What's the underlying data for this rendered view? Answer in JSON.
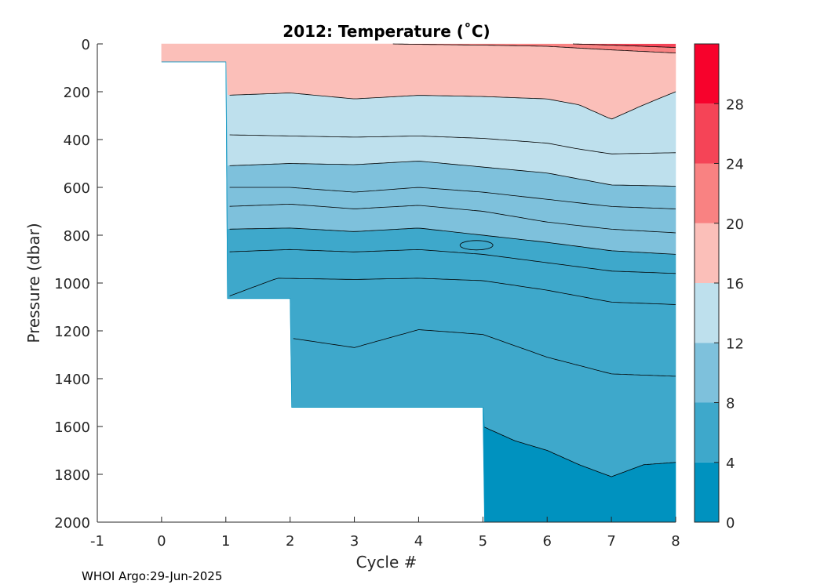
{
  "chart_data": {
    "type": "filled-contour",
    "title": "2012:  Temperature (˚C)",
    "xlabel": "Cycle #",
    "ylabel": "Pressure (dbar)",
    "xlim": [
      -1,
      8
    ],
    "ylim": [
      2000,
      0
    ],
    "y_reversed": true,
    "xticks": [
      -1,
      0,
      1,
      2,
      3,
      4,
      5,
      6,
      7,
      8
    ],
    "yticks": [
      0,
      200,
      400,
      600,
      800,
      1000,
      1200,
      1400,
      1600,
      1800,
      2000
    ],
    "colorbar": {
      "range": [
        0,
        32
      ],
      "ticks": [
        0,
        4,
        8,
        12,
        16,
        20,
        24,
        28
      ],
      "levels": [
        0,
        4,
        8,
        12,
        16,
        20,
        24,
        28,
        32
      ],
      "colors": [
        "#0092bf",
        "#3ea8cb",
        "#7ec1dc",
        "#bee0ed",
        "#fbbfb9",
        "#f98282",
        "#f54457",
        "#f7022c"
      ]
    },
    "profile_max_depth": [
      {
        "x_from": 0,
        "x_to": 1,
        "depth": 75
      },
      {
        "x_from": 1,
        "x_to": 2,
        "depth": 1065
      },
      {
        "x_from": 2,
        "x_to": 5,
        "depth": 1520
      },
      {
        "x_from": 5,
        "x_to": 8,
        "depth": 2000
      }
    ],
    "isotherms_dbar": [
      {
        "name": "28C",
        "x": [
          6.4,
          7,
          7.5,
          8
        ],
        "depth": [
          0,
          5,
          10,
          15
        ],
        "x_start": 6.4
      },
      {
        "name": "24C",
        "x": [
          3.6,
          4,
          5,
          6,
          7,
          8
        ],
        "depth": [
          0,
          2,
          5,
          10,
          25,
          38
        ],
        "x_start": 3.6
      },
      {
        "name": "16C",
        "x": [
          1,
          2,
          3,
          4,
          5,
          6,
          6.5,
          7,
          7.5,
          8
        ],
        "depth": [
          215,
          205,
          230,
          215,
          220,
          230,
          255,
          315,
          255,
          200
        ]
      },
      {
        "name": "12C_a",
        "x": [
          1,
          2,
          3,
          4,
          5,
          6,
          6.5,
          7,
          8
        ],
        "depth": [
          380,
          385,
          390,
          385,
          395,
          415,
          440,
          460,
          455
        ]
      },
      {
        "name": "12C_b",
        "x": [
          1,
          2,
          3,
          4,
          5,
          6,
          7,
          8
        ],
        "depth": [
          510,
          500,
          505,
          490,
          515,
          540,
          590,
          595
        ]
      },
      {
        "name": "8C_a",
        "x": [
          1,
          2,
          3,
          4,
          5,
          6,
          7,
          8
        ],
        "depth": [
          600,
          600,
          620,
          600,
          620,
          650,
          680,
          690
        ]
      },
      {
        "name": "8C_b",
        "x": [
          1,
          2,
          3,
          4,
          5,
          6,
          7,
          8
        ],
        "depth": [
          680,
          670,
          690,
          675,
          700,
          745,
          775,
          790
        ]
      },
      {
        "name": "8C_c",
        "x": [
          1,
          2,
          3,
          4,
          5,
          6,
          7,
          8
        ],
        "depth": [
          775,
          770,
          785,
          770,
          800,
          830,
          865,
          880
        ]
      },
      {
        "name": "4C_a",
        "x": [
          1,
          2,
          3,
          4,
          5,
          6,
          7,
          8
        ],
        "depth": [
          870,
          860,
          870,
          860,
          880,
          915,
          950,
          960
        ]
      },
      {
        "name": "4C_b",
        "x": [
          1,
          1.8,
          3,
          4,
          5,
          6,
          7,
          8
        ],
        "depth": [
          1060,
          980,
          985,
          980,
          990,
          1030,
          1080,
          1090
        ]
      },
      {
        "name": "4C_c",
        "x": [
          2,
          3,
          4,
          5,
          6,
          7,
          8
        ],
        "depth": [
          1230,
          1270,
          1195,
          1215,
          1310,
          1380,
          1390
        ]
      },
      {
        "name": "0C",
        "x": [
          5,
          5.5,
          6,
          6.5,
          7,
          7.5,
          8
        ],
        "depth": [
          1600,
          1660,
          1700,
          1760,
          1810,
          1760,
          1750
        ]
      }
    ],
    "band_fills": [
      {
        "label": "16-20",
        "color": "#fbbfb9",
        "top": "surface",
        "bottom": "16C"
      },
      {
        "label": "12-16",
        "color": "#bee0ed",
        "top": "16C",
        "bottom": "12C_b"
      },
      {
        "label": "8-12",
        "color": "#7ec1dc",
        "top": "12C_b",
        "bottom": "8C_c"
      },
      {
        "label": "4-8",
        "color": "#3ea8cb",
        "top": "8C_c",
        "bottom": "0C"
      },
      {
        "label": "0-4",
        "color": "#0092bf",
        "top": "0C",
        "bottom": "bottom"
      }
    ]
  },
  "footer": "WHOI Argo:29-Jun-2025"
}
